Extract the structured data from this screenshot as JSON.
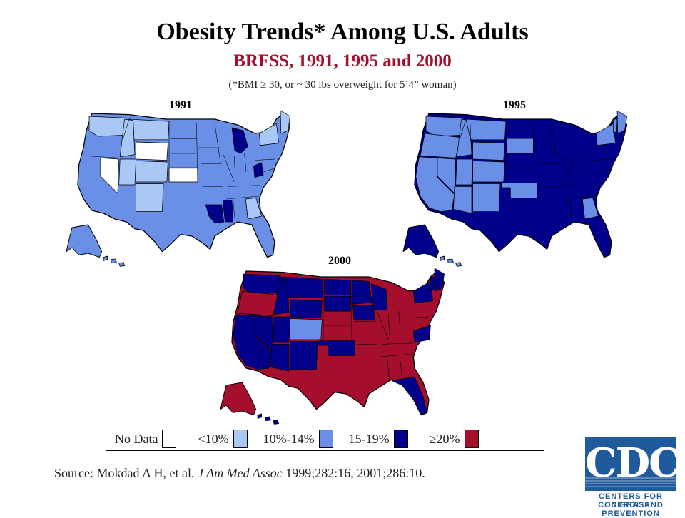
{
  "title": "Obesity Trends* Among U.S. Adults",
  "subtitle": "BRFSS, 1991, 1995 and 2000",
  "note": "(*BMI ≥ 30, or ~ 30 lbs overweight for 5’4” woman)",
  "colors": {
    "no_data": "#ffffff",
    "lt10": "#a9c8f5",
    "p10_14": "#6a8fe6",
    "p15_19": "#00008b",
    "ge20": "#a50f2d",
    "outline": "#000000"
  },
  "maps": [
    {
      "year": "1991",
      "mainland": "p10_14",
      "alaska": "p10_14",
      "hawaii": "p10_14",
      "states": {
        "wa": "lt10",
        "mt": "lt10",
        "ny": "lt10",
        "id": "lt10",
        "co": "lt10",
        "ut": "lt10",
        "nm": "lt10",
        "ga": "lt10",
        "nv": "no_data",
        "wy": "no_data",
        "ks": "no_data",
        "mi": "p15_19",
        "wv": "p15_19",
        "la": "p15_19",
        "ms": "p15_19",
        "me": "lt10"
      }
    },
    {
      "year": "1995",
      "mainland": "p15_19",
      "alaska": "p15_19",
      "hawaii": "p10_14",
      "states": {
        "wa": "p10_14",
        "or": "p10_14",
        "ca": "p10_14",
        "nv": "p10_14",
        "id": "p10_14",
        "mt": "p10_14",
        "wy": "p10_14",
        "ut": "p10_14",
        "co": "p10_14",
        "az": "p10_14",
        "nm": "p10_14",
        "sd": "p10_14",
        "ok": "p10_14",
        "ga": "p10_14",
        "me": "p10_14",
        "ny": "p10_14",
        "vt": "p10_14"
      }
    },
    {
      "year": "2000",
      "mainland": "ge20",
      "alaska": "ge20",
      "hawaii": "p15_19",
      "states": {
        "wa": "p15_19",
        "ca": "p15_19",
        "nv": "p15_19",
        "id": "p15_19",
        "mt": "p15_19",
        "wy": "p15_19",
        "ut": "p15_19",
        "az": "p15_19",
        "nm": "p15_19",
        "nd": "p15_19",
        "sd": "p15_19",
        "mn": "p15_19",
        "wi": "p15_19",
        "ia": "p15_19",
        "fl": "p15_19",
        "va": "p15_19",
        "me": "p15_19",
        "ny": "p15_19",
        "vt": "p15_19",
        "co": "p10_14",
        "or": "ge20",
        "ok": "p15_19"
      }
    }
  ],
  "legend": [
    {
      "label": "No Data",
      "key": "no_data"
    },
    {
      "label": "<10%",
      "key": "lt10"
    },
    {
      "label": "10%-14%",
      "key": "p10_14"
    },
    {
      "label": "15-19%",
      "key": "p15_19"
    },
    {
      "label": "≥20%",
      "key": "ge20"
    }
  ],
  "source": {
    "prefix": "Source: Mokdad A H, et al. ",
    "journal": "J Am Med Assoc",
    "suffix": " 1999;282:16,  2001;286:10."
  },
  "logo": {
    "text": "CDC",
    "line1": "CENTERS FOR DISEASE",
    "line2": "CONTROL AND PREVENTION"
  }
}
